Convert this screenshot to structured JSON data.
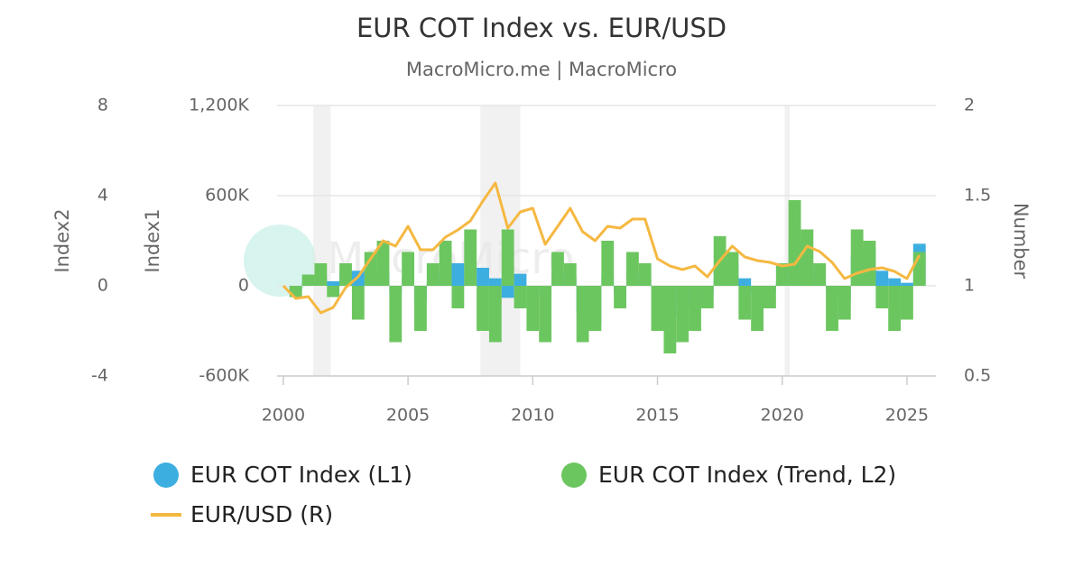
{
  "chart_data": {
    "type": "bar",
    "title": "EUR COT Index vs. EUR/USD",
    "subtitle": "MacroMicro.me | MacroMicro",
    "watermark": "MacroMicro",
    "ylabel": "Index1",
    "y3label": "Index2",
    "y2label": "Number",
    "x": [
      2000,
      2000.5,
      2001,
      2001.5,
      2002,
      2002.5,
      2003,
      2003.5,
      2004,
      2004.5,
      2005,
      2005.5,
      2006,
      2006.5,
      2007,
      2007.5,
      2008,
      2008.5,
      2009,
      2009.5,
      2010,
      2010.5,
      2011,
      2011.5,
      2012,
      2012.5,
      2013,
      2013.5,
      2014,
      2014.5,
      2015,
      2015.5,
      2016,
      2016.5,
      2017,
      2017.5,
      2018,
      2018.5,
      2019,
      2019.5,
      2020,
      2020.5,
      2021,
      2021.5,
      2022,
      2022.5,
      2023,
      2023.5,
      2024,
      2024.5,
      2025,
      2025.5
    ],
    "xlim": [
      1999.75,
      2026.16
    ],
    "xticks": [
      2000,
      2005,
      2010,
      2015,
      2020,
      2025
    ],
    "ylim": [
      -600000,
      1200000
    ],
    "yticks": [
      {
        "value": -600000,
        "label": "-600K"
      },
      0,
      {
        "value": 600000,
        "label": "600K"
      },
      {
        "value": 1200000,
        "label": "1,200K"
      }
    ],
    "y3lim": [
      -4,
      8
    ],
    "y3ticks": [
      -4,
      0,
      4,
      8
    ],
    "y2lim": [
      0.5,
      2
    ],
    "y2ticks": [
      0.5,
      1,
      1.5,
      2
    ],
    "grid": true,
    "recessions": [
      [
        2001.2,
        2001.9
      ],
      [
        2007.9,
        2009.5
      ],
      [
        2020.1,
        2020.3
      ]
    ],
    "series": [
      {
        "name": "EUR COT Index (L1)",
        "color": "#3daee0",
        "type": "bar",
        "axis": "y",
        "values": [
          0,
          -30000,
          20000,
          50000,
          30000,
          80000,
          100000,
          80000,
          100000,
          -50000,
          50000,
          -100000,
          30000,
          100000,
          150000,
          100000,
          120000,
          50000,
          -80000,
          80000,
          0,
          -50000,
          80000,
          60000,
          -180000,
          -250000,
          50000,
          -50000,
          80000,
          50000,
          -300000,
          -200000,
          -100000,
          -150000,
          -50000,
          100000,
          150000,
          50000,
          -50000,
          -30000,
          30000,
          300000,
          150000,
          50000,
          -30000,
          -100000,
          200000,
          250000,
          100000,
          50000,
          20000,
          280000
        ]
      },
      {
        "name": "EUR COT Index (Trend, L2)",
        "color": "#6cc65f",
        "type": "bar",
        "axis": "y3",
        "values": [
          0,
          -0.5,
          0.5,
          1,
          -0.5,
          1,
          -1.5,
          1.5,
          2,
          -2.5,
          1.5,
          -2,
          1,
          2,
          -1,
          2.5,
          -2,
          -2.5,
          2.5,
          -1,
          -2,
          -2.5,
          1.5,
          1,
          -2.5,
          -2,
          2,
          -1,
          1.5,
          1,
          -2,
          -3,
          -2.5,
          -2,
          -1,
          2.2,
          1.5,
          -1.5,
          -2,
          -1,
          1,
          3.8,
          2.5,
          1,
          -2,
          -1.5,
          2.5,
          2,
          -1,
          -2,
          -1.5,
          1.5
        ]
      },
      {
        "name": "EUR/USD (R)",
        "color": "#f5b841",
        "type": "line",
        "axis": "y2",
        "values": [
          1.0,
          0.93,
          0.94,
          0.85,
          0.88,
          0.99,
          1.05,
          1.15,
          1.25,
          1.22,
          1.33,
          1.2,
          1.2,
          1.27,
          1.31,
          1.36,
          1.47,
          1.57,
          1.32,
          1.41,
          1.43,
          1.23,
          1.33,
          1.43,
          1.3,
          1.25,
          1.33,
          1.32,
          1.37,
          1.37,
          1.15,
          1.11,
          1.09,
          1.11,
          1.05,
          1.14,
          1.22,
          1.16,
          1.14,
          1.13,
          1.11,
          1.12,
          1.22,
          1.19,
          1.13,
          1.04,
          1.07,
          1.09,
          1.1,
          1.08,
          1.04,
          1.17
        ]
      }
    ]
  }
}
